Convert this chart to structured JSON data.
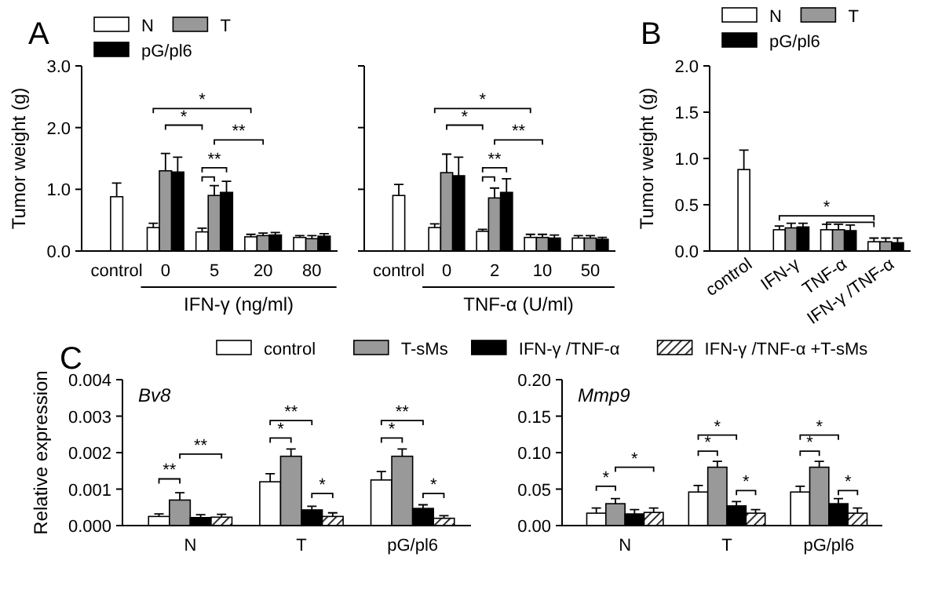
{
  "chart_data": [
    {
      "type": "bar",
      "title": "A",
      "ylabel": "Tumor weight (g)",
      "xlabel": "IFN-γ  (ng/ml)",
      "categories": [
        "control",
        "0",
        "5",
        "20",
        "80"
      ],
      "ylim": [
        0,
        3
      ],
      "yticks": [
        {
          "value": 0,
          "label": "0.0"
        },
        {
          "value": 1,
          "label": "1.0"
        },
        {
          "value": 2,
          "label": "2.0"
        },
        {
          "value": 3,
          "label": "3.0"
        }
      ],
      "legend": "top",
      "annotations": [
        "*",
        "*",
        "**",
        "**"
      ],
      "series": [
        {
          "name": "N",
          "color": "#ffffff",
          "values": [
            0.88,
            0.38,
            0.31,
            0.23,
            0.22
          ],
          "errors": [
            0.22,
            0.07,
            0.06,
            0.04,
            0.03
          ]
        },
        {
          "name": "T",
          "color": "#999999",
          "values": [
            null,
            1.3,
            0.9,
            0.25,
            0.2
          ],
          "errors": [
            null,
            0.28,
            0.16,
            0.04,
            0.05
          ]
        },
        {
          "name": "pG/pl6",
          "color": "#000000",
          "values": [
            null,
            1.28,
            0.95,
            0.26,
            0.24
          ],
          "errors": [
            null,
            0.24,
            0.18,
            0.04,
            0.04
          ]
        }
      ]
    },
    {
      "type": "bar",
      "xlabel": "TNF-α  (U/ml)",
      "categories": [
        "control",
        "0",
        "2",
        "10",
        "50"
      ],
      "ylim": [
        0,
        3
      ],
      "yticks": [
        {
          "value": 0,
          "label": null
        },
        {
          "value": 1,
          "label": null
        },
        {
          "value": 2,
          "label": null
        },
        {
          "value": 3,
          "label": null
        }
      ],
      "tick_labels": "x",
      "annotations": [
        "*",
        "*",
        "**",
        "**"
      ],
      "series": [
        {
          "color": "#ffffff",
          "values": [
            0.9,
            0.38,
            0.32,
            0.22,
            0.21
          ],
          "errors": [
            0.18,
            0.06,
            0.03,
            0.05,
            0.04
          ]
        },
        {
          "color": "#999999",
          "values": [
            null,
            1.27,
            0.86,
            0.22,
            0.21
          ],
          "errors": [
            null,
            0.3,
            0.16,
            0.05,
            0.04
          ]
        },
        {
          "color": "#000000",
          "values": [
            null,
            1.22,
            0.95,
            0.21,
            0.19
          ],
          "errors": [
            null,
            0.3,
            0.22,
            0.05,
            0.03
          ]
        }
      ]
    },
    {
      "type": "bar",
      "title": "B",
      "ylabel": "Tumor weight (g)",
      "categories": [
        "control",
        "IFN-γ",
        "TNF-α",
        "IFN-γ /TNF-α"
      ],
      "ylim": [
        0,
        2
      ],
      "yticks": [
        {
          "value": 0,
          "label": "0.0"
        },
        {
          "value": 0.5,
          "label": "0.5"
        },
        {
          "value": 1,
          "label": "1.0"
        },
        {
          "value": 1.5,
          "label": "1.5"
        },
        {
          "value": 2,
          "label": "2.0"
        }
      ],
      "legend": "top",
      "annotations": [
        "*"
      ],
      "series": [
        {
          "name": "N",
          "color": "#ffffff",
          "values": [
            0.88,
            0.23,
            0.23,
            0.1
          ],
          "errors": [
            0.21,
            0.04,
            0.06,
            0.04
          ]
        },
        {
          "name": "T",
          "color": "#999999",
          "values": [
            null,
            0.25,
            0.23,
            0.1
          ],
          "errors": [
            null,
            0.05,
            0.06,
            0.04
          ]
        },
        {
          "name": "pG/pl6",
          "color": "#000000",
          "values": [
            null,
            0.26,
            0.22,
            0.09
          ],
          "errors": [
            null,
            0.04,
            0.06,
            0.05
          ]
        }
      ]
    },
    {
      "type": "bar",
      "title": "C",
      "subtitle": "Bv8",
      "ylabel": "Relative expression",
      "categories": [
        "N",
        "T",
        "pG/pl6"
      ],
      "ylim": [
        0,
        0.004
      ],
      "yticks": [
        {
          "value": 0,
          "label": "0.000"
        },
        {
          "value": 0.001,
          "label": "0.001"
        },
        {
          "value": 0.002,
          "label": "0.002"
        },
        {
          "value": 0.003,
          "label": "0.003"
        },
        {
          "value": 0.004,
          "label": "0.004"
        }
      ],
      "legend": "top",
      "annotations": [
        "**",
        "**",
        "*",
        "**",
        "*",
        "*",
        "**",
        "*"
      ],
      "series": [
        {
          "name": "control",
          "color": "#ffffff",
          "values": [
            0.00025,
            0.0012,
            0.00125
          ],
          "errors": [
            7e-05,
            0.00022,
            0.00023
          ]
        },
        {
          "name": "T-sMs",
          "color": "#999999",
          "values": [
            0.0007,
            0.0019,
            0.0019
          ],
          "errors": [
            0.0002,
            0.0002,
            0.0002
          ]
        },
        {
          "name": "IFN-γ /TNF-α",
          "color": "#000000",
          "values": [
            0.00022,
            0.00043,
            0.00047
          ],
          "errors": [
            8e-05,
            0.0001,
            0.0001
          ]
        },
        {
          "name": "IFN-γ /TNF-α +T-sMs",
          "color": "#000000",
          "values": [
            0.00023,
            0.00025,
            0.0002
          ],
          "errors": [
            8e-05,
            0.0001,
            7e-05
          ]
        }
      ]
    },
    {
      "type": "bar",
      "subtitle": "Mmp9",
      "categories": [
        "N",
        "T",
        "pG/pl6"
      ],
      "ylim": [
        0,
        0.2
      ],
      "yticks": [
        {
          "value": 0,
          "label": "0.00"
        },
        {
          "value": 0.05,
          "label": "0.05"
        },
        {
          "value": 0.1,
          "label": "0.10"
        },
        {
          "value": 0.15,
          "label": "0.15"
        },
        {
          "value": 0.2,
          "label": "0.20"
        }
      ],
      "annotations": [
        "*",
        "*",
        "*",
        "*",
        "*",
        "*",
        "*",
        "*"
      ],
      "series": [
        {
          "color": "#ffffff",
          "values": [
            0.017,
            0.046,
            0.046
          ],
          "errors": [
            0.007,
            0.009,
            0.008
          ]
        },
        {
          "color": "#999999",
          "values": [
            0.03,
            0.08,
            0.08
          ],
          "errors": [
            0.007,
            0.008,
            0.008
          ]
        },
        {
          "color": "#000000",
          "values": [
            0.016,
            0.027,
            0.03
          ],
          "errors": [
            0.006,
            0.006,
            0.007
          ]
        },
        {
          "color": "#000000",
          "values": [
            0.018,
            0.017,
            0.017
          ],
          "errors": [
            0.006,
            0.005,
            0.007
          ]
        }
      ]
    }
  ]
}
